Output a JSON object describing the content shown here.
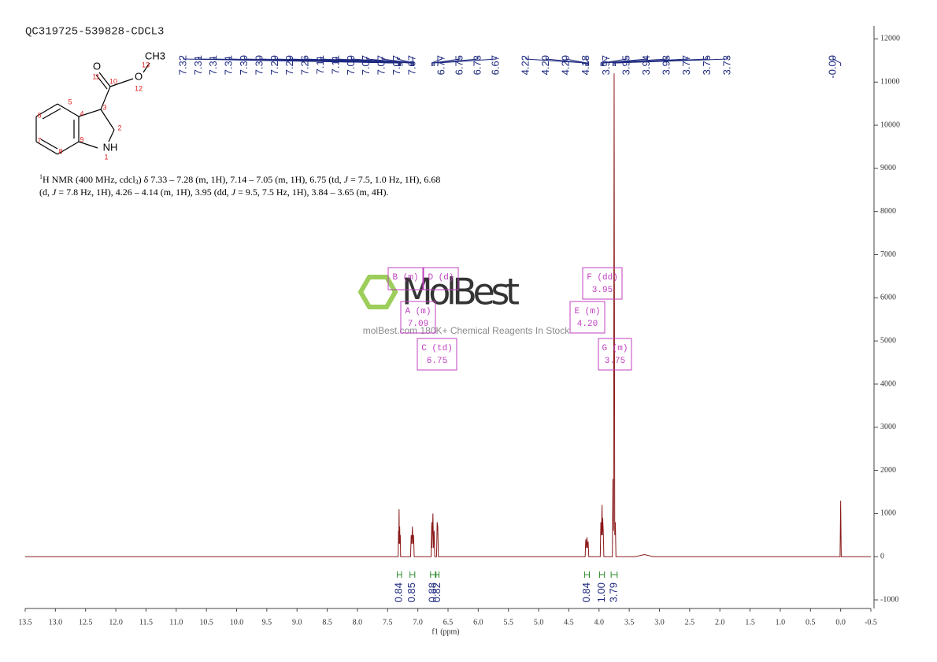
{
  "chart_data": {
    "type": "line",
    "title": "QC319725-539828-CDCL3",
    "xlabel": "f1 (ppm)",
    "color": "#8b1a1a",
    "xlim": [
      13.5,
      -0.5
    ],
    "ylim": [
      -1200,
      12300
    ],
    "xticks": [
      13.5,
      {
        "value": 13,
        "label": "13.0"
      },
      12.5,
      {
        "value": 12,
        "label": "12.0"
      },
      11.5,
      {
        "value": 11,
        "label": "11.0"
      },
      10.5,
      {
        "value": 10,
        "label": "10.0"
      },
      9.5,
      {
        "value": 9,
        "label": "9.0"
      },
      8.5,
      {
        "value": 8,
        "label": "8.0"
      },
      7.5,
      {
        "value": 7,
        "label": "7.0"
      },
      6.5,
      {
        "value": 6,
        "label": "6.0"
      },
      5.5,
      {
        "value": 5,
        "label": "5.0"
      },
      4.5,
      {
        "value": 4,
        "label": "4.0"
      },
      3.5,
      {
        "value": 3,
        "label": "3.0"
      },
      2.5,
      {
        "value": 2,
        "label": "2.0"
      },
      1.5,
      {
        "value": 1,
        "label": "1.0"
      },
      0.5,
      {
        "value": 0,
        "label": "0.0"
      },
      -0.5
    ],
    "yticks": [
      -1000,
      0,
      1000,
      2000,
      3000,
      4000,
      5000,
      6000,
      7000,
      8000,
      9000,
      10000,
      11000,
      12000
    ],
    "x": [
      13.5,
      7.325,
      7.32,
      7.315,
      7.31,
      7.305,
      7.3,
      7.295,
      7.29,
      7.285,
      7.12,
      7.11,
      7.1,
      7.09,
      7.08,
      7.07,
      7.06,
      6.78,
      6.77,
      6.765,
      6.75,
      6.74,
      6.73,
      6.72,
      6.69,
      6.68,
      6.67,
      6.66,
      4.23,
      4.22,
      4.21,
      4.2,
      4.19,
      4.18,
      4.17,
      3.98,
      3.97,
      3.96,
      3.95,
      3.945,
      3.94,
      3.93,
      3.92,
      3.78,
      3.77,
      3.76,
      3.75,
      3.74,
      3.73,
      3.72,
      3.4,
      3.25,
      3.1,
      0.01,
      0,
      -0.01,
      -0.5
    ],
    "values": [
      0,
      0,
      600,
      300,
      1100,
      300,
      700,
      300,
      500,
      0,
      0,
      500,
      300,
      700,
      300,
      500,
      0,
      0,
      800,
      200,
      1000,
      200,
      600,
      0,
      0,
      800,
      700,
      0,
      0,
      400,
      200,
      450,
      200,
      350,
      0,
      0,
      800,
      500,
      1200,
      500,
      900,
      600,
      0,
      0,
      1800,
      600,
      11200,
      500,
      800,
      0,
      0,
      50,
      0,
      0,
      1300,
      0,
      0
    ],
    "peaks": [
      {
        "value": 7.32,
        "label": "7.32"
      },
      {
        "value": 7.31,
        "label": "7.31"
      },
      {
        "value": 7.31,
        "label": "7.31"
      },
      {
        "value": 7.31,
        "label": "7.31"
      },
      {
        "value": 7.3,
        "label": "7.30"
      },
      {
        "value": 7.3,
        "label": "7.30"
      },
      {
        "value": 7.29,
        "label": "7.29"
      },
      {
        "value": 7.29,
        "label": "7.29"
      },
      {
        "value": 7.26,
        "label": "7.26"
      },
      {
        "value": 7.11,
        "label": "7.11"
      },
      {
        "value": 7.11,
        "label": "7.11"
      },
      {
        "value": 7.09,
        "label": "7.09"
      },
      {
        "value": 7.07,
        "label": "7.07"
      },
      {
        "value": 7.07,
        "label": "7.07"
      },
      {
        "value": 7.07,
        "label": "7.07"
      },
      {
        "value": 7.07,
        "label": "7.07"
      },
      {
        "value": 6.77,
        "label": "6.77"
      },
      {
        "value": 6.75,
        "label": "6.75"
      },
      {
        "value": 6.73,
        "label": "6.73"
      },
      {
        "value": 6.67,
        "label": "6.67"
      },
      {
        "value": 4.22,
        "label": "4.22"
      },
      {
        "value": 4.2,
        "label": "4.20"
      },
      {
        "value": 4.2,
        "label": "4.20"
      },
      {
        "value": 4.18,
        "label": "4.18"
      },
      {
        "value": 3.97,
        "label": "3.97"
      },
      {
        "value": 3.95,
        "label": "3.95"
      },
      {
        "value": 3.94,
        "label": "3.94"
      },
      {
        "value": 3.93,
        "label": "3.93"
      },
      {
        "value": 3.77,
        "label": "3.77"
      },
      {
        "value": 3.75,
        "label": "3.75"
      },
      {
        "value": 3.73,
        "label": "3.73"
      },
      {
        "value": 0,
        "label": "-0.00"
      }
    ],
    "integrals": {
      "ranges": [
        [
          7.34,
          7.27
        ],
        [
          7.13,
          7.05
        ],
        [
          6.79,
          6.71
        ],
        [
          6.7,
          6.65
        ],
        [
          4.24,
          4.16
        ],
        [
          3.99,
          3.91
        ],
        [
          3.8,
          3.7
        ]
      ],
      "values": [
        0.84,
        0.85,
        0.88,
        0.82,
        0.84,
        1,
        3.79
      ],
      "value_labels": [
        "0.84",
        "0.85",
        "0.88",
        "0.82",
        "0.84",
        "1.00",
        "3.79"
      ]
    },
    "multiplets": [
      {
        "label": "B (m)"
      },
      {
        "label": "D (d)"
      },
      {
        "label": "A (m)",
        "shift": "7.09"
      },
      {
        "label": "C (td)",
        "shift": "6.75"
      },
      {
        "label": "E (m)",
        "shift": "4.20"
      },
      {
        "label": "F (dd)",
        "shift": "3.95"
      },
      {
        "label": "G (m)",
        "shift": "3.75"
      }
    ]
  },
  "structure": {
    "elements": [
      "O",
      "O",
      "CH3",
      "NH"
    ],
    "atom_numbers": [
      "11",
      "10",
      "12",
      "13",
      "3",
      "2",
      "4",
      "5",
      "6",
      "7",
      "8",
      "9",
      "1"
    ]
  },
  "description": {
    "line1": [
      "1",
      "H NMR (400 MHz, cdcl",
      "3",
      ") δ 7.33 – 7.28 (m, 1H), 7.14 – 7.05 (m, 1H), 6.75 (td, ",
      "J",
      " = 7.5, 1.0 Hz, 1H), 6.68"
    ],
    "line2": [
      "(d, ",
      "J",
      " = 7.8 Hz, 1H), 4.26 – 4.14 (m, 1H), 3.95 (dd, ",
      "J",
      " = 9.5, 7.5 Hz, 1H), 3.84 – 3.65 (m, 4H)."
    ]
  },
  "watermark": {
    "logo": "MolBest",
    "tagline": "molBest.com 180K+ Chemical Reagents In Stock"
  }
}
